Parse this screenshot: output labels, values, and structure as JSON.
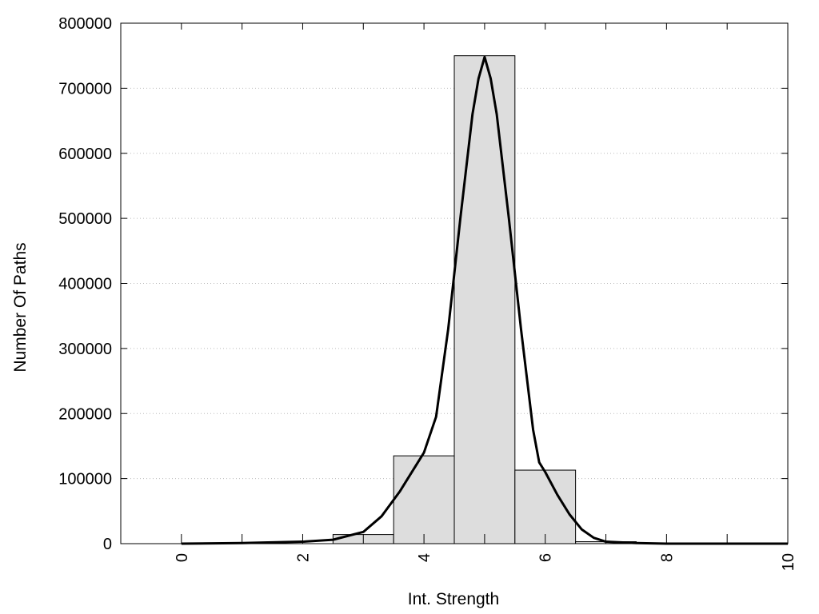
{
  "chart_data": {
    "type": "bar",
    "xlabel": "Int. Strength",
    "ylabel": "Number Of Paths",
    "xlim": [
      -1,
      10
    ],
    "ylim": [
      0,
      800000
    ],
    "x_ticks": [
      0,
      2,
      4,
      6,
      8,
      10
    ],
    "x_tick_labels": [
      "0",
      "2",
      "4",
      "6",
      "8",
      "10"
    ],
    "y_ticks": [
      0,
      100000,
      200000,
      300000,
      400000,
      500000,
      600000,
      700000,
      800000
    ],
    "y_tick_labels": [
      "0",
      "100000",
      "200000",
      "300000",
      "400000",
      "500000",
      "600000",
      "700000",
      "800000"
    ],
    "grid": "horizontal dotted",
    "bar_color": "#dddddd",
    "bar_edge_color": "#000000",
    "bars": [
      {
        "x": 3,
        "value": 14000
      },
      {
        "x": 4,
        "value": 135000
      },
      {
        "x": 5,
        "value": 750000
      },
      {
        "x": 6,
        "value": 113000
      },
      {
        "x": 7,
        "value": 3000
      }
    ],
    "bar_width": 1,
    "fit_curve": {
      "type": "line",
      "color": "#000000",
      "x": [
        0,
        1,
        2,
        2.5,
        3,
        3.3,
        3.6,
        3.9,
        4.0,
        4.2,
        4.4,
        4.6,
        4.8,
        4.9,
        5.0,
        5.1,
        5.2,
        5.4,
        5.6,
        5.8,
        5.9,
        6.0,
        6.2,
        6.4,
        6.6,
        6.8,
        7.0,
        7.5,
        8,
        9,
        10
      ],
      "y": [
        0,
        1000,
        3000,
        6000,
        18000,
        42000,
        80000,
        125000,
        140000,
        195000,
        330000,
        500000,
        660000,
        715000,
        748000,
        715000,
        660000,
        500000,
        330000,
        175000,
        125000,
        110000,
        75000,
        45000,
        22000,
        9000,
        3000,
        1000,
        0,
        0,
        0
      ]
    }
  }
}
